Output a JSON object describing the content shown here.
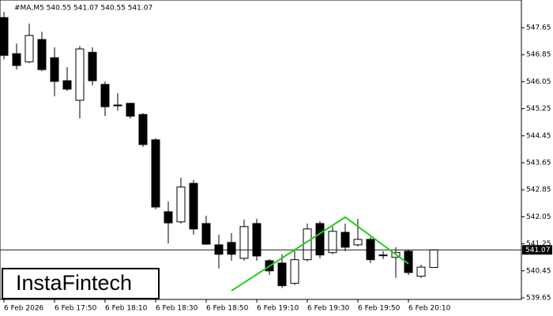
{
  "chart_data": {
    "type": "candlestick",
    "header": "#MA,M5  540.55 541.07 540.55 541.07",
    "watermark": "InstaFintech",
    "categories": [
      "6 Feb 2026",
      null,
      null,
      null,
      "6 Feb 17:50",
      null,
      null,
      null,
      "6 Feb 18:10",
      null,
      null,
      null,
      "6 Feb 18:30",
      null,
      null,
      null,
      "6 Feb 18:50",
      null,
      null,
      null,
      "6 Feb 19:10",
      null,
      null,
      null,
      "6 Feb 19:30",
      null,
      null,
      null,
      "6 Feb 19:50",
      null,
      null,
      null,
      "6 Feb 20:10",
      null,
      null
    ],
    "open": [
      547.95,
      546.88,
      546.64,
      547.3,
      546.76,
      546.08,
      545.5,
      546.92,
      545.97,
      545.36,
      545.41,
      545.08,
      544.33,
      542.2,
      541.9,
      543.04,
      541.85,
      541.22,
      541.29,
      540.82,
      541.85,
      540.75,
      540.68,
      540.08,
      540.78,
      541.85,
      540.99,
      541.59,
      541.22,
      541.38,
      540.92,
      540.85,
      541.03,
      540.29,
      540.55
    ],
    "high": [
      548.12,
      547.18,
      547.77,
      547.53,
      547.07,
      546.48,
      547.11,
      547.07,
      546.06,
      545.71,
      545.43,
      545.12,
      544.38,
      542.5,
      543.21,
      543.14,
      542.08,
      541.52,
      541.57,
      541.97,
      541.99,
      540.8,
      540.94,
      541.1,
      541.85,
      541.92,
      541.76,
      541.85,
      541.99,
      541.45,
      541.03,
      541.15,
      541.08,
      540.63,
      541.07
    ],
    "low": [
      546.71,
      546.41,
      546.6,
      546.36,
      545.62,
      545.78,
      544.96,
      545.94,
      545.03,
      545.19,
      544.96,
      544.12,
      542.27,
      541.26,
      541.85,
      541.52,
      541.22,
      540.52,
      540.75,
      540.75,
      540.75,
      540.33,
      539.94,
      540.03,
      540.73,
      540.82,
      540.94,
      541.03,
      541.17,
      540.68,
      540.8,
      540.24,
      540.33,
      540.24,
      540.55
    ],
    "close": [
      546.83,
      546.53,
      547.42,
      546.41,
      546.06,
      545.83,
      547.02,
      546.08,
      545.31,
      545.36,
      545.03,
      544.19,
      542.34,
      541.87,
      542.93,
      541.69,
      541.24,
      540.94,
      540.94,
      541.76,
      540.89,
      540.45,
      540.01,
      540.78,
      541.69,
      540.92,
      541.62,
      541.15,
      541.38,
      540.78,
      540.92,
      540.99,
      540.4,
      540.56,
      541.07
    ],
    "up_color": "#ffffff",
    "down_color": "#000000",
    "current_price": 541.07,
    "pattern": {
      "color": "#22cc22",
      "index": [
        18,
        27,
        32
      ],
      "values": [
        539.86,
        542.04,
        540.66
      ]
    },
    "ylim": [
      539.58,
      548.47
    ],
    "yticks": [
      547.65,
      546.85,
      546.05,
      545.25,
      544.45,
      543.65,
      542.85,
      542.05,
      541.25,
      540.45,
      539.65
    ]
  }
}
